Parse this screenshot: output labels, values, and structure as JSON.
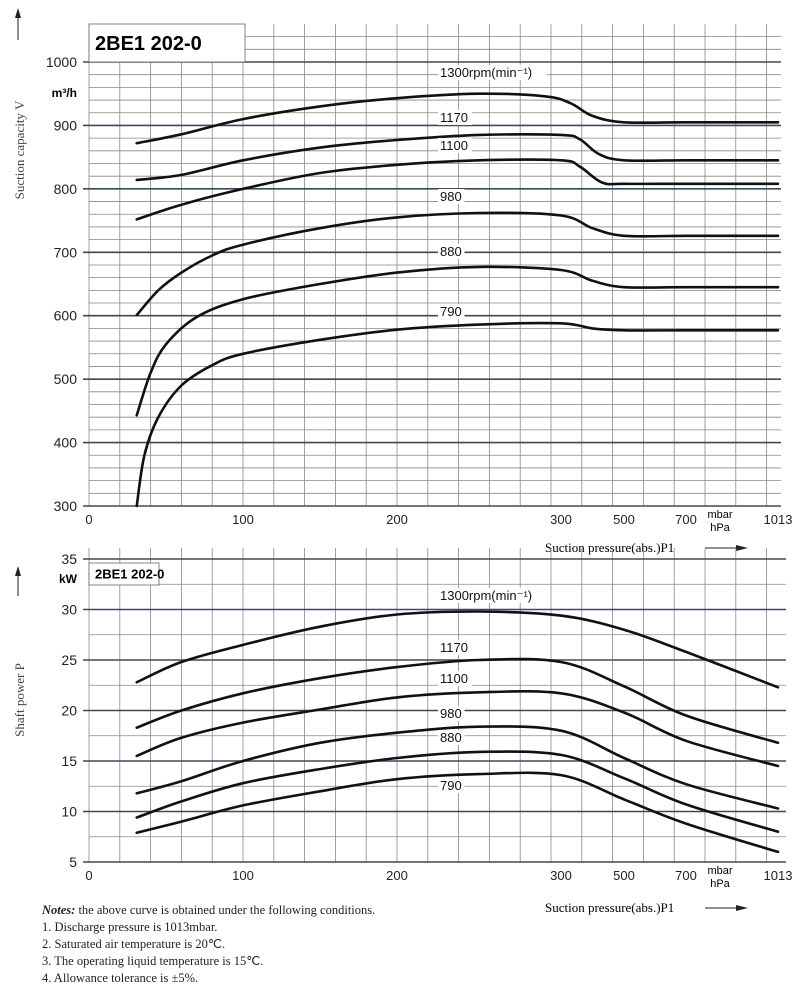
{
  "chart_data": [
    {
      "type": "line",
      "title": "2BE1 202-0",
      "ylabel": "Suction capacity V",
      "yunit": "m³/h",
      "xlabel": "Suction pressure(abs.)P1",
      "xunit": [
        "mbar",
        "hPa"
      ],
      "ylim": [
        300,
        1000
      ],
      "yticks": [
        300,
        400,
        500,
        600,
        700,
        800,
        900,
        1000
      ],
      "xticks": [
        0,
        100,
        200,
        300,
        500,
        700,
        1013
      ],
      "grid": true,
      "series": [
        {
          "name": "1300rpm(min⁻¹)",
          "points": [
            [
              31,
              872
            ],
            [
              60,
              886
            ],
            [
              100,
              910
            ],
            [
              150,
              930
            ],
            [
              200,
              943
            ],
            [
              250,
              950
            ],
            [
              290,
              946
            ],
            [
              330,
              935
            ],
            [
              400,
              915
            ],
            [
              500,
              905
            ],
            [
              700,
              905
            ],
            [
              1013,
              905
            ]
          ]
        },
        {
          "name": "1170",
          "points": [
            [
              31,
              814
            ],
            [
              60,
              822
            ],
            [
              100,
              845
            ],
            [
              150,
              865
            ],
            [
              200,
              877
            ],
            [
              250,
              885
            ],
            [
              300,
              885
            ],
            [
              360,
              878
            ],
            [
              420,
              855
            ],
            [
              500,
              845
            ],
            [
              700,
              845
            ],
            [
              1013,
              845
            ]
          ]
        },
        {
          "name": "1100",
          "points": [
            [
              31,
              752
            ],
            [
              60,
              775
            ],
            [
              100,
              800
            ],
            [
              150,
              825
            ],
            [
              200,
              838
            ],
            [
              250,
              845
            ],
            [
              300,
              845
            ],
            [
              360,
              835
            ],
            [
              430,
              810
            ],
            [
              500,
              808
            ],
            [
              700,
              808
            ],
            [
              1013,
              808
            ]
          ]
        },
        {
          "name": "980",
          "points": [
            [
              31,
              601
            ],
            [
              45,
              640
            ],
            [
              60,
              668
            ],
            [
              80,
              695
            ],
            [
              100,
              712
            ],
            [
              150,
              738
            ],
            [
              200,
              755
            ],
            [
              250,
              762
            ],
            [
              300,
              758
            ],
            [
              400,
              738
            ],
            [
              500,
              726
            ],
            [
              700,
              726
            ],
            [
              1013,
              726
            ]
          ]
        },
        {
          "name": "880",
          "points": [
            [
              31,
              443
            ],
            [
              40,
              510
            ],
            [
              50,
              555
            ],
            [
              70,
              598
            ],
            [
              100,
              626
            ],
            [
              150,
              650
            ],
            [
              200,
              668
            ],
            [
              250,
              677
            ],
            [
              300,
              672
            ],
            [
              400,
              655
            ],
            [
              500,
              645
            ],
            [
              700,
              645
            ],
            [
              1013,
              645
            ]
          ]
        },
        {
          "name": "790",
          "points": [
            [
              31,
              300
            ],
            [
              36,
              380
            ],
            [
              45,
              440
            ],
            [
              60,
              490
            ],
            [
              80,
              522
            ],
            [
              100,
              540
            ],
            [
              150,
              562
            ],
            [
              200,
              578
            ],
            [
              250,
              586
            ],
            [
              300,
              588
            ],
            [
              400,
              580
            ],
            [
              500,
              577
            ],
            [
              700,
              577
            ],
            [
              1013,
              577
            ]
          ]
        }
      ]
    },
    {
      "type": "line",
      "title": "2BE1 202-0",
      "ylabel": "Shaft power P",
      "yunit": "kW",
      "xlabel": "Suction pressure(abs.)P1",
      "xunit": [
        "mbar",
        "hPa"
      ],
      "ylim": [
        5,
        35
      ],
      "yticks": [
        5,
        10,
        15,
        20,
        25,
        30,
        35
      ],
      "xticks": [
        0,
        100,
        200,
        300,
        500,
        700,
        1013
      ],
      "grid": true,
      "series": [
        {
          "name": "1300rpm(min⁻¹)",
          "points": [
            [
              31,
              22.8
            ],
            [
              60,
              24.8
            ],
            [
              100,
              26.5
            ],
            [
              150,
              28.3
            ],
            [
              200,
              29.5
            ],
            [
              250,
              29.8
            ],
            [
              300,
              29.4
            ],
            [
              500,
              28
            ],
            [
              700,
              25.8
            ],
            [
              1013,
              22.3
            ]
          ]
        },
        {
          "name": "1170",
          "points": [
            [
              31,
              18.3
            ],
            [
              60,
              20
            ],
            [
              100,
              21.7
            ],
            [
              150,
              23.2
            ],
            [
              200,
              24.3
            ],
            [
              250,
              25
            ],
            [
              300,
              24.8
            ],
            [
              500,
              22.4
            ],
            [
              700,
              19.5
            ],
            [
              1013,
              16.8
            ]
          ]
        },
        {
          "name": "1100",
          "points": [
            [
              31,
              15.5
            ],
            [
              60,
              17.3
            ],
            [
              100,
              18.8
            ],
            [
              150,
              20.1
            ],
            [
              200,
              21.3
            ],
            [
              250,
              21.8
            ],
            [
              300,
              21.7
            ],
            [
              500,
              19.8
            ],
            [
              700,
              17
            ],
            [
              1013,
              14.5
            ]
          ]
        },
        {
          "name": "980",
          "points": [
            [
              31,
              11.8
            ],
            [
              60,
              13
            ],
            [
              100,
              15
            ],
            [
              150,
              16.8
            ],
            [
              200,
              17.8
            ],
            [
              250,
              18.4
            ],
            [
              300,
              18
            ],
            [
              500,
              15.3
            ],
            [
              700,
              12.7
            ],
            [
              1013,
              10.3
            ]
          ]
        },
        {
          "name": "880",
          "points": [
            [
              31,
              9.4
            ],
            [
              60,
              11
            ],
            [
              100,
              12.8
            ],
            [
              150,
              14.2
            ],
            [
              200,
              15.3
            ],
            [
              250,
              15.9
            ],
            [
              300,
              15.6
            ],
            [
              500,
              13.3
            ],
            [
              700,
              10.7
            ],
            [
              1013,
              8
            ]
          ]
        },
        {
          "name": "790",
          "points": [
            [
              31,
              7.9
            ],
            [
              60,
              9
            ],
            [
              100,
              10.6
            ],
            [
              150,
              12
            ],
            [
              200,
              13.2
            ],
            [
              250,
              13.7
            ],
            [
              300,
              13.6
            ],
            [
              500,
              11.2
            ],
            [
              700,
              8.8
            ],
            [
              1013,
              6
            ]
          ]
        }
      ]
    }
  ],
  "notes": {
    "heading": "Notes:",
    "intro": " the above curve is obtained under the following conditions.",
    "items": [
      "1. Discharge pressure is 1013mbar.",
      "2. Saturated air temperature is 20℃.",
      "3. The operating liquid temperature is 15℃.",
      "4. Allowance tolerance is ±5%."
    ]
  }
}
